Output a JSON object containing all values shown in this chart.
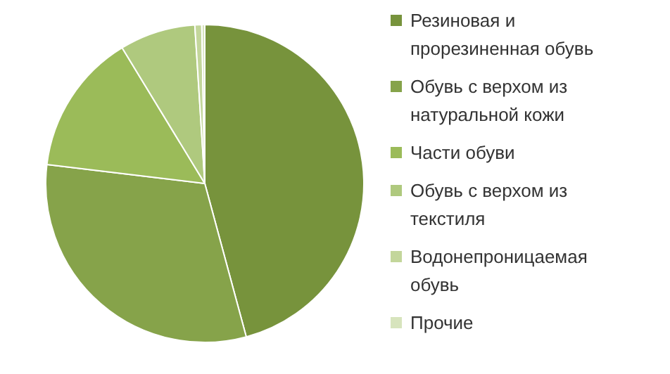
{
  "chart_data": {
    "type": "pie",
    "categories": [
      "Резиновая и прорезиненная обувь",
      "Обувь с верхом из натуральной кожи",
      "Части обуви",
      "Обувь с верхом из текстиля",
      "Водонепроницаемая обувь",
      "Прочие"
    ],
    "values": [
      45.8,
      31.1,
      14.4,
      7.7,
      0.7,
      0.3
    ],
    "colors": [
      "#77933c",
      "#86a34a",
      "#9bbb59",
      "#afc97e",
      "#c3d69b",
      "#d7e4bd"
    ],
    "legend": "right"
  }
}
